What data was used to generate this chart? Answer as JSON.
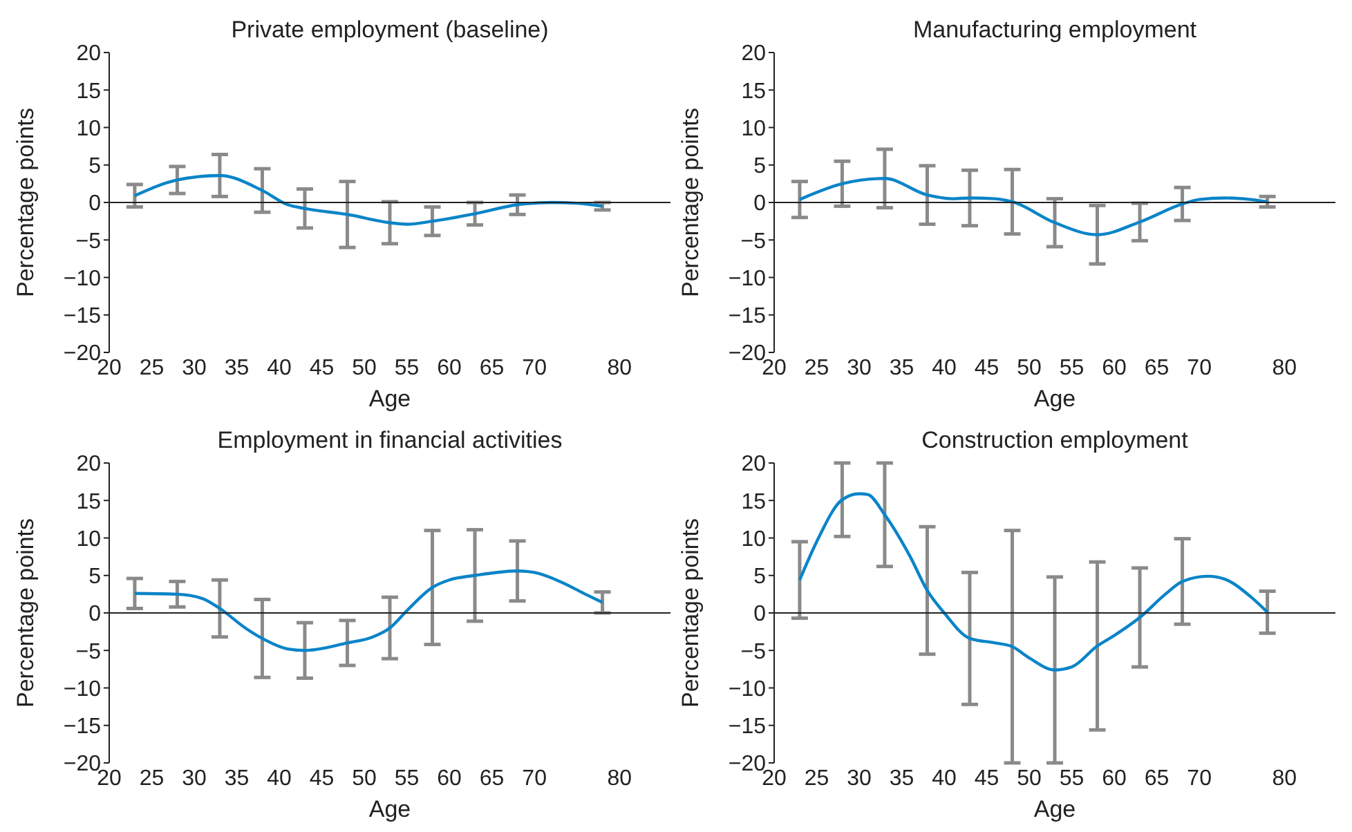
{
  "chart_data": [
    {
      "type": "line",
      "title": "Private employment (baseline)",
      "xlabel": "Age",
      "ylabel": "Percentage points",
      "xlim": [
        20,
        86
      ],
      "xticks": [
        20,
        25,
        30,
        35,
        40,
        45,
        50,
        55,
        60,
        65,
        70,
        80
      ],
      "ylim": [
        -20,
        20
      ],
      "yticks": [
        -20,
        -15,
        -10,
        -5,
        0,
        5,
        10,
        15,
        20
      ],
      "series": [
        {
          "type": "line",
          "color": "#0a84c8",
          "x": [
            23,
            28,
            33,
            38,
            41,
            43,
            48,
            53,
            55,
            58,
            63,
            68,
            72,
            75,
            78
          ],
          "values": [
            0.9,
            3.0,
            3.6,
            1.6,
            -0.3,
            -0.8,
            -1.6,
            -2.7,
            -2.9,
            -2.5,
            -1.5,
            -0.3,
            0,
            -0.1,
            -0.5
          ],
          "errors": [
            1.5,
            1.8,
            2.8,
            2.9,
            null,
            2.6,
            4.4,
            2.8,
            null,
            1.9,
            1.5,
            1.3,
            null,
            null,
            0.5
          ]
        }
      ]
    },
    {
      "type": "line",
      "title": "Manufacturing employment",
      "xlabel": "Age",
      "ylabel": "Percentage points",
      "xlim": [
        20,
        86
      ],
      "xticks": [
        20,
        25,
        30,
        35,
        40,
        45,
        50,
        55,
        60,
        65,
        70,
        80
      ],
      "ylim": [
        -20,
        20
      ],
      "yticks": [
        -20,
        -15,
        -10,
        -5,
        0,
        5,
        10,
        15,
        20
      ],
      "series": [
        {
          "type": "line",
          "color": "#0a84c8",
          "x": [
            23,
            28,
            33,
            38,
            41,
            43,
            46,
            48,
            53,
            58,
            63,
            68,
            70,
            73,
            76,
            78
          ],
          "values": [
            0.4,
            2.5,
            3.2,
            1.0,
            0.5,
            0.6,
            0.5,
            0.1,
            -2.7,
            -4.3,
            -2.6,
            -0.2,
            0.4,
            0.6,
            0.4,
            0.1
          ],
          "errors": [
            2.4,
            3.0,
            3.9,
            3.9,
            null,
            3.7,
            null,
            4.3,
            3.2,
            3.9,
            2.5,
            2.2,
            null,
            null,
            null,
            0.7
          ]
        }
      ]
    },
    {
      "type": "line",
      "title": "Employment in financial activities",
      "xlabel": "Age",
      "ylabel": "Percentage points",
      "xlim": [
        20,
        86
      ],
      "xticks": [
        20,
        25,
        30,
        35,
        40,
        45,
        50,
        55,
        60,
        65,
        70,
        80
      ],
      "ylim": [
        -20,
        20
      ],
      "yticks": [
        -20,
        -15,
        -10,
        -5,
        0,
        5,
        10,
        15,
        20
      ],
      "series": [
        {
          "type": "line",
          "color": "#0a84c8",
          "x": [
            23,
            28,
            31,
            33,
            36,
            38,
            41,
            43,
            48,
            51,
            53,
            55,
            58,
            60,
            63,
            68,
            70,
            73,
            76,
            78
          ],
          "values": [
            2.6,
            2.5,
            1.9,
            0.6,
            -2.0,
            -3.4,
            -4.8,
            -5.0,
            -4.0,
            -3.2,
            -2.0,
            0.3,
            3.4,
            4.4,
            5.0,
            5.6,
            5.4,
            4.2,
            2.5,
            1.4
          ],
          "errors": [
            2.0,
            1.7,
            null,
            3.8,
            null,
            5.2,
            null,
            3.7,
            3.0,
            null,
            4.1,
            null,
            7.6,
            null,
            6.1,
            4.0,
            null,
            null,
            null,
            1.4
          ]
        }
      ]
    },
    {
      "type": "line",
      "title": "Construction employment",
      "xlabel": "Age",
      "ylabel": "Percentage points",
      "xlim": [
        20,
        86
      ],
      "xticks": [
        20,
        25,
        30,
        35,
        40,
        45,
        50,
        55,
        60,
        65,
        70,
        80
      ],
      "ylim": [
        -20,
        20
      ],
      "yticks": [
        -20,
        -15,
        -10,
        -5,
        0,
        5,
        10,
        15,
        20
      ],
      "series": [
        {
          "type": "line",
          "color": "#0a84c8",
          "x": [
            23,
            25,
            28,
            30,
            31,
            33,
            36,
            38,
            40,
            43,
            46,
            48,
            50,
            53,
            55,
            58,
            60,
            63,
            66,
            68,
            71,
            73,
            76,
            78
          ],
          "values": [
            4.4,
            9.5,
            15.1,
            15.9,
            15.8,
            13.1,
            7.5,
            3.0,
            0,
            -3.4,
            -4.0,
            -4.5,
            -6.0,
            -7.6,
            -7.2,
            -4.4,
            -3.0,
            -0.6,
            2.5,
            4.2,
            4.9,
            4.5,
            2.2,
            0.1
          ],
          "errors": [
            5.1,
            null,
            4.9,
            null,
            null,
            6.9,
            null,
            8.5,
            null,
            8.8,
            null,
            15.5,
            null,
            12.4,
            null,
            11.2,
            null,
            6.6,
            null,
            5.7,
            null,
            null,
            null,
            2.8
          ]
        }
      ]
    }
  ]
}
